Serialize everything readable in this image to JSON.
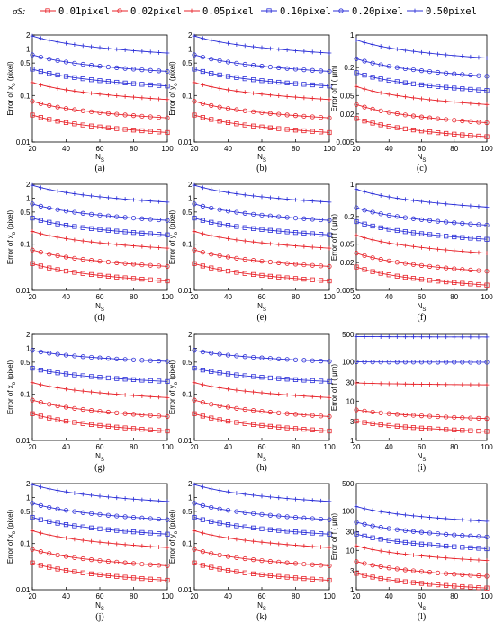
{
  "legend": {
    "symbol": "σS:",
    "placement": "top",
    "entries": [
      {
        "label": "0.01pixel",
        "color": "#e8232a",
        "marker": "square"
      },
      {
        "label": "0.02pixel",
        "color": "#e8232a",
        "marker": "circle"
      },
      {
        "label": "0.05pixel",
        "color": "#e8232a",
        "marker": "plus"
      },
      {
        "label": "0.10pixel",
        "color": "#2b2fd8",
        "marker": "square"
      },
      {
        "label": "0.20pixel",
        "color": "#2b2fd8",
        "marker": "circle"
      },
      {
        "label": "0.50pixel",
        "color": "#2b2fd8",
        "marker": "plus"
      }
    ]
  },
  "chart_data": [
    {
      "type": "line",
      "panel": "(a)",
      "xlabel": "N_S",
      "ylabel": "Error of x_o (pixel)",
      "yscale": "log",
      "xlim": [
        20,
        100
      ],
      "ylim": [
        0.01,
        2
      ],
      "xticks": [
        20,
        40,
        60,
        80,
        100
      ],
      "yticks": [
        0.01,
        0.1,
        0.5,
        1,
        2
      ],
      "yticklabels": [
        "0.01",
        "0.1",
        "0.5",
        "1",
        "2"
      ],
      "series": [
        {
          "name": "0.01pixel",
          "color": "#e8232a",
          "marker": "square",
          "start": 0.038,
          "end": 0.016
        },
        {
          "name": "0.02pixel",
          "color": "#e8232a",
          "marker": "circle",
          "start": 0.075,
          "end": 0.033
        },
        {
          "name": "0.05pixel",
          "color": "#e8232a",
          "marker": "plus",
          "start": 0.19,
          "end": 0.082
        },
        {
          "name": "0.10pixel",
          "color": "#2b2fd8",
          "marker": "square",
          "start": 0.37,
          "end": 0.16
        },
        {
          "name": "0.20pixel",
          "color": "#2b2fd8",
          "marker": "circle",
          "start": 0.75,
          "end": 0.33
        },
        {
          "name": "0.50pixel",
          "color": "#2b2fd8",
          "marker": "plus",
          "start": 1.9,
          "end": 0.82
        }
      ]
    },
    {
      "type": "line",
      "panel": "(b)",
      "xlabel": "N_S",
      "ylabel": "Error of y_o (pixel)",
      "yscale": "log",
      "xlim": [
        20,
        100
      ],
      "ylim": [
        0.01,
        2
      ],
      "xticks": [
        20,
        40,
        60,
        80,
        100
      ],
      "yticks": [
        0.01,
        0.1,
        0.5,
        1,
        2
      ],
      "yticklabels": [
        "0.01",
        "0.1",
        "0.5",
        "1",
        "2"
      ],
      "series": [
        {
          "name": "0.01pixel",
          "color": "#e8232a",
          "marker": "square",
          "start": 0.038,
          "end": 0.016
        },
        {
          "name": "0.02pixel",
          "color": "#e8232a",
          "marker": "circle",
          "start": 0.075,
          "end": 0.033
        },
        {
          "name": "0.05pixel",
          "color": "#e8232a",
          "marker": "plus",
          "start": 0.19,
          "end": 0.082
        },
        {
          "name": "0.10pixel",
          "color": "#2b2fd8",
          "marker": "square",
          "start": 0.37,
          "end": 0.16
        },
        {
          "name": "0.20pixel",
          "color": "#2b2fd8",
          "marker": "circle",
          "start": 0.75,
          "end": 0.33
        },
        {
          "name": "0.50pixel",
          "color": "#2b2fd8",
          "marker": "plus",
          "start": 1.9,
          "end": 0.82
        }
      ]
    },
    {
      "type": "line",
      "panel": "(c)",
      "xlabel": "N_S",
      "ylabel": "Error of f ( μm)",
      "yscale": "log",
      "xlim": [
        20,
        100
      ],
      "ylim": [
        0.005,
        1
      ],
      "xticks": [
        20,
        40,
        60,
        80,
        100
      ],
      "yticks": [
        0.005,
        0.02,
        0.05,
        0.2,
        1
      ],
      "yticklabels": [
        "0.005",
        "0.02",
        "0.05",
        "0.2",
        "1"
      ],
      "series": [
        {
          "name": "0.01pixel",
          "color": "#e8232a",
          "marker": "square",
          "start": 0.016,
          "end": 0.0065
        },
        {
          "name": "0.02pixel",
          "color": "#e8232a",
          "marker": "circle",
          "start": 0.032,
          "end": 0.013
        },
        {
          "name": "0.05pixel",
          "color": "#e8232a",
          "marker": "plus",
          "start": 0.078,
          "end": 0.032
        },
        {
          "name": "0.10pixel",
          "color": "#2b2fd8",
          "marker": "square",
          "start": 0.155,
          "end": 0.064
        },
        {
          "name": "0.20pixel",
          "color": "#2b2fd8",
          "marker": "circle",
          "start": 0.31,
          "end": 0.13
        },
        {
          "name": "0.50pixel",
          "color": "#2b2fd8",
          "marker": "plus",
          "start": 0.78,
          "end": 0.32
        }
      ]
    },
    {
      "type": "line",
      "panel": "(d)",
      "xlabel": "N_S",
      "ylabel": "Error of x_o (pixel)",
      "yscale": "log",
      "xlim": [
        20,
        100
      ],
      "ylim": [
        0.01,
        2
      ],
      "xticks": [
        20,
        40,
        60,
        80,
        100
      ],
      "yticks": [
        0.01,
        0.1,
        0.5,
        1,
        2
      ],
      "yticklabels": [
        "0.01",
        "0.1",
        "0.5",
        "1",
        "2"
      ],
      "series": [
        {
          "name": "0.01pixel",
          "color": "#e8232a",
          "marker": "square",
          "start": 0.038,
          "end": 0.016
        },
        {
          "name": "0.02pixel",
          "color": "#e8232a",
          "marker": "circle",
          "start": 0.075,
          "end": 0.033
        },
        {
          "name": "0.05pixel",
          "color": "#e8232a",
          "marker": "plus",
          "start": 0.19,
          "end": 0.082
        },
        {
          "name": "0.10pixel",
          "color": "#2b2fd8",
          "marker": "square",
          "start": 0.37,
          "end": 0.16
        },
        {
          "name": "0.20pixel",
          "color": "#2b2fd8",
          "marker": "circle",
          "start": 0.75,
          "end": 0.33
        },
        {
          "name": "0.50pixel",
          "color": "#2b2fd8",
          "marker": "plus",
          "start": 1.9,
          "end": 0.82
        }
      ]
    },
    {
      "type": "line",
      "panel": "(e)",
      "xlabel": "N_S",
      "ylabel": "Error of y_o (pixel)",
      "yscale": "log",
      "xlim": [
        20,
        100
      ],
      "ylim": [
        0.01,
        2
      ],
      "xticks": [
        20,
        40,
        60,
        80,
        100
      ],
      "yticks": [
        0.01,
        0.1,
        0.5,
        1,
        2
      ],
      "yticklabels": [
        "0.01",
        "0.1",
        "0.5",
        "1",
        "2"
      ],
      "series": [
        {
          "name": "0.01pixel",
          "color": "#e8232a",
          "marker": "square",
          "start": 0.038,
          "end": 0.016
        },
        {
          "name": "0.02pixel",
          "color": "#e8232a",
          "marker": "circle",
          "start": 0.075,
          "end": 0.033
        },
        {
          "name": "0.05pixel",
          "color": "#e8232a",
          "marker": "plus",
          "start": 0.19,
          "end": 0.082
        },
        {
          "name": "0.10pixel",
          "color": "#2b2fd8",
          "marker": "square",
          "start": 0.37,
          "end": 0.16
        },
        {
          "name": "0.20pixel",
          "color": "#2b2fd8",
          "marker": "circle",
          "start": 0.75,
          "end": 0.33
        },
        {
          "name": "0.50pixel",
          "color": "#2b2fd8",
          "marker": "plus",
          "start": 1.9,
          "end": 0.82
        }
      ]
    },
    {
      "type": "line",
      "panel": "(f)",
      "xlabel": "N_S",
      "ylabel": "Error of f ( μm)",
      "yscale": "log",
      "xlim": [
        20,
        100
      ],
      "ylim": [
        0.005,
        1
      ],
      "xticks": [
        20,
        40,
        60,
        80,
        100
      ],
      "yticks": [
        0.005,
        0.02,
        0.05,
        0.2,
        1
      ],
      "yticklabels": [
        "0.005",
        "0.02",
        "0.05",
        "0.2",
        "1"
      ],
      "series": [
        {
          "name": "0.01pixel",
          "color": "#e8232a",
          "marker": "square",
          "start": 0.016,
          "end": 0.0065
        },
        {
          "name": "0.02pixel",
          "color": "#e8232a",
          "marker": "circle",
          "start": 0.032,
          "end": 0.013
        },
        {
          "name": "0.05pixel",
          "color": "#e8232a",
          "marker": "plus",
          "start": 0.078,
          "end": 0.032
        },
        {
          "name": "0.10pixel",
          "color": "#2b2fd8",
          "marker": "square",
          "start": 0.155,
          "end": 0.064
        },
        {
          "name": "0.20pixel",
          "color": "#2b2fd8",
          "marker": "circle",
          "start": 0.31,
          "end": 0.13
        },
        {
          "name": "0.50pixel",
          "color": "#2b2fd8",
          "marker": "plus",
          "start": 0.78,
          "end": 0.32
        }
      ]
    },
    {
      "type": "line",
      "panel": "(g)",
      "xlabel": "N_S",
      "ylabel": "Error of x_o (pixel)",
      "yscale": "log",
      "xlim": [
        20,
        100
      ],
      "ylim": [
        0.01,
        2
      ],
      "xticks": [
        20,
        40,
        60,
        80,
        100
      ],
      "yticks": [
        0.01,
        0.1,
        0.5,
        1,
        2
      ],
      "yticklabels": [
        "0.01",
        "0.1",
        "0.5",
        "1",
        "2"
      ],
      "series": [
        {
          "name": "0.01pixel",
          "color": "#e8232a",
          "marker": "square",
          "start": 0.038,
          "end": 0.016
        },
        {
          "name": "0.02pixel",
          "color": "#e8232a",
          "marker": "circle",
          "start": 0.075,
          "end": 0.033
        },
        {
          "name": "0.05pixel",
          "color": "#e8232a",
          "marker": "plus",
          "start": 0.18,
          "end": 0.085
        },
        {
          "name": "0.10pixel",
          "color": "#2b2fd8",
          "marker": "square",
          "start": 0.37,
          "end": 0.19
        },
        {
          "name": "0.20pixel",
          "color": "#2b2fd8",
          "marker": "circle",
          "start": 0.9,
          "end": 0.52
        }
      ]
    },
    {
      "type": "line",
      "panel": "(h)",
      "xlabel": "N_S",
      "ylabel": "Error of y_o (pixel)",
      "yscale": "log",
      "xlim": [
        20,
        100
      ],
      "ylim": [
        0.01,
        2
      ],
      "xticks": [
        20,
        40,
        60,
        80,
        100
      ],
      "yticks": [
        0.01,
        0.1,
        0.5,
        1,
        2
      ],
      "yticklabels": [
        "0.01",
        "0.1",
        "0.5",
        "1",
        "2"
      ],
      "series": [
        {
          "name": "0.01pixel",
          "color": "#e8232a",
          "marker": "square",
          "start": 0.038,
          "end": 0.016
        },
        {
          "name": "0.02pixel",
          "color": "#e8232a",
          "marker": "circle",
          "start": 0.075,
          "end": 0.033
        },
        {
          "name": "0.05pixel",
          "color": "#e8232a",
          "marker": "plus",
          "start": 0.18,
          "end": 0.085
        },
        {
          "name": "0.10pixel",
          "color": "#2b2fd8",
          "marker": "square",
          "start": 0.37,
          "end": 0.19
        },
        {
          "name": "0.20pixel",
          "color": "#2b2fd8",
          "marker": "circle",
          "start": 0.9,
          "end": 0.52
        }
      ]
    },
    {
      "type": "line",
      "panel": "(i)",
      "xlabel": "N_S",
      "ylabel": "Error of f ( μm)",
      "yscale": "log",
      "xlim": [
        20,
        100
      ],
      "ylim": [
        1,
        500
      ],
      "xticks": [
        20,
        40,
        60,
        80,
        100
      ],
      "yticks": [
        1,
        3,
        10,
        30,
        100,
        500
      ],
      "yticklabels": [
        "1",
        "3",
        "10",
        "30",
        "100",
        "500"
      ],
      "series": [
        {
          "name": "0.01pixel",
          "color": "#e8232a",
          "marker": "square",
          "start": 3.1,
          "end": 1.7
        },
        {
          "name": "0.02pixel",
          "color": "#e8232a",
          "marker": "circle",
          "start": 6.0,
          "end": 3.6
        },
        {
          "name": "0.05pixel",
          "color": "#e8232a",
          "marker": "plus",
          "start": 29,
          "end": 26
        },
        {
          "name": "0.20pixel",
          "color": "#2b2fd8",
          "marker": "circle",
          "start": 100,
          "end": 98
        },
        {
          "name": "0.50pixel",
          "color": "#2b2fd8",
          "marker": "plus",
          "start": 440,
          "end": 430
        }
      ]
    },
    {
      "type": "line",
      "panel": "(j)",
      "xlabel": "N_S",
      "ylabel": "Error of x_o (pixel)",
      "yscale": "log",
      "xlim": [
        20,
        100
      ],
      "ylim": [
        0.01,
        2
      ],
      "xticks": [
        20,
        40,
        60,
        80,
        100
      ],
      "yticks": [
        0.01,
        0.1,
        0.5,
        1,
        2
      ],
      "yticklabels": [
        "0.01",
        "0.1",
        "0.5",
        "1",
        "2"
      ],
      "series": [
        {
          "name": "0.01pixel",
          "color": "#e8232a",
          "marker": "square",
          "start": 0.038,
          "end": 0.016
        },
        {
          "name": "0.02pixel",
          "color": "#e8232a",
          "marker": "circle",
          "start": 0.075,
          "end": 0.033
        },
        {
          "name": "0.05pixel",
          "color": "#e8232a",
          "marker": "plus",
          "start": 0.19,
          "end": 0.082
        },
        {
          "name": "0.10pixel",
          "color": "#2b2fd8",
          "marker": "square",
          "start": 0.37,
          "end": 0.16
        },
        {
          "name": "0.20pixel",
          "color": "#2b2fd8",
          "marker": "circle",
          "start": 0.75,
          "end": 0.33
        },
        {
          "name": "0.50pixel",
          "color": "#2b2fd8",
          "marker": "plus",
          "start": 1.9,
          "end": 0.82
        }
      ]
    },
    {
      "type": "line",
      "panel": "(k)",
      "xlabel": "N_S",
      "ylabel": "Error of y_o (pixel)",
      "yscale": "log",
      "xlim": [
        20,
        100
      ],
      "ylim": [
        0.01,
        2
      ],
      "xticks": [
        20,
        40,
        60,
        80,
        100
      ],
      "yticks": [
        0.01,
        0.1,
        0.5,
        1,
        2
      ],
      "yticklabels": [
        "0.01",
        "0.1",
        "0.5",
        "1",
        "2"
      ],
      "series": [
        {
          "name": "0.01pixel",
          "color": "#e8232a",
          "marker": "square",
          "start": 0.038,
          "end": 0.016
        },
        {
          "name": "0.02pixel",
          "color": "#e8232a",
          "marker": "circle",
          "start": 0.075,
          "end": 0.033
        },
        {
          "name": "0.05pixel",
          "color": "#e8232a",
          "marker": "plus",
          "start": 0.19,
          "end": 0.082
        },
        {
          "name": "0.10pixel",
          "color": "#2b2fd8",
          "marker": "square",
          "start": 0.37,
          "end": 0.16
        },
        {
          "name": "0.20pixel",
          "color": "#2b2fd8",
          "marker": "circle",
          "start": 0.75,
          "end": 0.33
        },
        {
          "name": "0.50pixel",
          "color": "#2b2fd8",
          "marker": "plus",
          "start": 1.9,
          "end": 0.82
        }
      ]
    },
    {
      "type": "line",
      "panel": "(l)",
      "xlabel": "N_S",
      "ylabel": "Error of f ( μm)",
      "yscale": "log",
      "xlim": [
        20,
        100
      ],
      "ylim": [
        1,
        500
      ],
      "xticks": [
        20,
        40,
        60,
        80,
        100
      ],
      "yticks": [
        1,
        3,
        10,
        30,
        100,
        500
      ],
      "yticklabels": [
        "1",
        "3",
        "10",
        "30",
        "100",
        "500"
      ],
      "series": [
        {
          "name": "0.01pixel",
          "color": "#e8232a",
          "marker": "square",
          "start": 2.6,
          "end": 1.1
        },
        {
          "name": "0.02pixel",
          "color": "#e8232a",
          "marker": "circle",
          "start": 5.2,
          "end": 2.2
        },
        {
          "name": "0.05pixel",
          "color": "#e8232a",
          "marker": "plus",
          "start": 13,
          "end": 5.5
        },
        {
          "name": "0.10pixel",
          "color": "#2b2fd8",
          "marker": "square",
          "start": 26,
          "end": 11
        },
        {
          "name": "0.20pixel",
          "color": "#2b2fd8",
          "marker": "circle",
          "start": 52,
          "end": 22
        },
        {
          "name": "0.50pixel",
          "color": "#2b2fd8",
          "marker": "plus",
          "start": 130,
          "end": 55
        }
      ]
    }
  ]
}
